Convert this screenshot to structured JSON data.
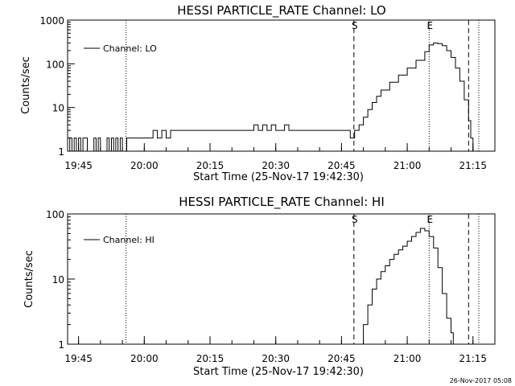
{
  "footer": {
    "timestamp": "26-Nov-2017 05:08"
  },
  "chart_data": [
    {
      "type": "line",
      "title": "HESSI PARTICLE_RATE Channel: LO",
      "xlabel": "Start Time (25-Nov-17 19:42:30)",
      "ylabel": "Counts/sec",
      "yscale": "log",
      "ylim": [
        1,
        1000
      ],
      "xlim": [
        "19:42:30",
        "21:20:00"
      ],
      "grid": false,
      "legend": {
        "placement": "top-left",
        "entries": [
          "Channel: LO"
        ]
      },
      "x_ticks": [
        "19:45",
        "20:00",
        "20:15",
        "20:30",
        "20:45",
        "21:00",
        "21:15"
      ],
      "y_ticks": [
        "1",
        "10",
        "100",
        "1000"
      ],
      "event_markers": [
        {
          "label": "S",
          "time": "20:47:50",
          "style": "dashed"
        },
        {
          "label": "E",
          "time": "21:05:00",
          "style": "dotted"
        }
      ],
      "reference_lines": [
        {
          "time": "19:55:50",
          "style": "dotted"
        },
        {
          "time": "21:14:00",
          "style": "dashed"
        },
        {
          "time": "21:16:20",
          "style": "dotted"
        }
      ],
      "series": [
        {
          "name": "Channel: LO",
          "x": [
            "19:42:30",
            "19:43:00",
            "19:43:30",
            "19:44:00",
            "19:44:30",
            "19:45:00",
            "19:45:30",
            "19:46:00",
            "19:46:30",
            "19:47:00",
            "19:47:30",
            "19:48:00",
            "19:48:30",
            "19:49:00",
            "19:49:30",
            "19:50:00",
            "19:50:30",
            "19:51:00",
            "19:51:30",
            "19:52:00",
            "19:52:30",
            "19:53:00",
            "19:53:30",
            "19:54:00",
            "19:54:30",
            "19:55:00",
            "19:55:30",
            "19:56:00",
            "19:57:00",
            "19:58:00",
            "19:59:00",
            "20:00:00",
            "20:01:00",
            "20:02:00",
            "20:03:00",
            "20:04:00",
            "20:05:00",
            "20:06:00",
            "20:07:00",
            "20:08:00",
            "20:09:00",
            "20:10:00",
            "20:11:00",
            "20:12:00",
            "20:13:00",
            "20:14:00",
            "20:15:00",
            "20:16:00",
            "20:17:00",
            "20:18:00",
            "20:19:00",
            "20:20:00",
            "20:21:00",
            "20:22:00",
            "20:23:00",
            "20:24:00",
            "20:25:00",
            "20:26:00",
            "20:27:00",
            "20:28:00",
            "20:29:00",
            "20:30:00",
            "20:31:00",
            "20:32:00",
            "20:33:00",
            "20:34:00",
            "20:35:00",
            "20:36:00",
            "20:37:00",
            "20:38:00",
            "20:39:00",
            "20:40:00",
            "20:41:00",
            "20:42:00",
            "20:43:00",
            "20:44:00",
            "20:45:00",
            "20:46:00",
            "20:47:00",
            "20:48:00",
            "20:49:00",
            "20:50:00",
            "20:51:00",
            "20:52:00",
            "20:53:00",
            "20:54:00",
            "20:56:00",
            "20:58:00",
            "21:00:00",
            "21:02:00",
            "21:04:00",
            "21:05:00",
            "21:06:00",
            "21:07:00",
            "21:08:00",
            "21:09:00",
            "21:10:00",
            "21:11:00",
            "21:12:00",
            "21:13:00",
            "21:14:00",
            "21:14:30",
            "21:15:00"
          ],
          "y": [
            1,
            2,
            1,
            2,
            1,
            2,
            1,
            2,
            2,
            1,
            1,
            1,
            2,
            1,
            2,
            1,
            1,
            1,
            2,
            1,
            2,
            1,
            2,
            1,
            2,
            1,
            1,
            2,
            2,
            2,
            2,
            2,
            2,
            3,
            2,
            3,
            2,
            3,
            3,
            3,
            3,
            3,
            3,
            3,
            3,
            3,
            3,
            3,
            3,
            3,
            3,
            3,
            3,
            3,
            3,
            3,
            4,
            3,
            4,
            3,
            4,
            3,
            3,
            4,
            3,
            3,
            3,
            3,
            3,
            3,
            3,
            3,
            3,
            3,
            3,
            3,
            3,
            3,
            2,
            3,
            4,
            6,
            9,
            13,
            18,
            25,
            38,
            55,
            80,
            120,
            190,
            270,
            300,
            290,
            260,
            200,
            140,
            80,
            40,
            15,
            5,
            2,
            1
          ]
        }
      ]
    },
    {
      "type": "line",
      "title": "HESSI PARTICLE_RATE Channel: HI",
      "xlabel": "Start Time (25-Nov-17 19:42:30)",
      "ylabel": "Counts/sec",
      "yscale": "log",
      "ylim": [
        1,
        100
      ],
      "xlim": [
        "19:42:30",
        "21:20:00"
      ],
      "grid": false,
      "legend": {
        "placement": "top-left",
        "entries": [
          "Channel: HI"
        ]
      },
      "x_ticks": [
        "19:45",
        "20:00",
        "20:15",
        "20:30",
        "20:45",
        "21:00",
        "21:15"
      ],
      "y_ticks": [
        "1",
        "10",
        "100"
      ],
      "event_markers": [
        {
          "label": "S",
          "time": "20:47:50",
          "style": "dashed"
        },
        {
          "label": "E",
          "time": "21:05:00",
          "style": "dotted"
        }
      ],
      "reference_lines": [
        {
          "time": "19:55:50",
          "style": "dotted"
        },
        {
          "time": "21:14:00",
          "style": "dashed"
        },
        {
          "time": "21:16:20",
          "style": "dotted"
        }
      ],
      "series": [
        {
          "name": "Channel: HI",
          "x": [
            "20:49:00",
            "20:50:00",
            "20:51:00",
            "20:52:00",
            "20:53:00",
            "20:54:00",
            "20:55:00",
            "20:56:00",
            "20:57:00",
            "20:58:00",
            "20:59:00",
            "21:00:00",
            "21:01:00",
            "21:02:00",
            "21:03:00",
            "21:04:00",
            "21:05:00",
            "21:06:00",
            "21:07:00",
            "21:08:00",
            "21:09:00",
            "21:10:00",
            "21:10:30"
          ],
          "y": [
            1,
            2,
            4,
            7,
            10,
            13,
            16,
            20,
            24,
            28,
            32,
            38,
            45,
            52,
            60,
            55,
            45,
            30,
            15,
            6,
            2.5,
            1.5,
            1
          ]
        }
      ]
    }
  ]
}
